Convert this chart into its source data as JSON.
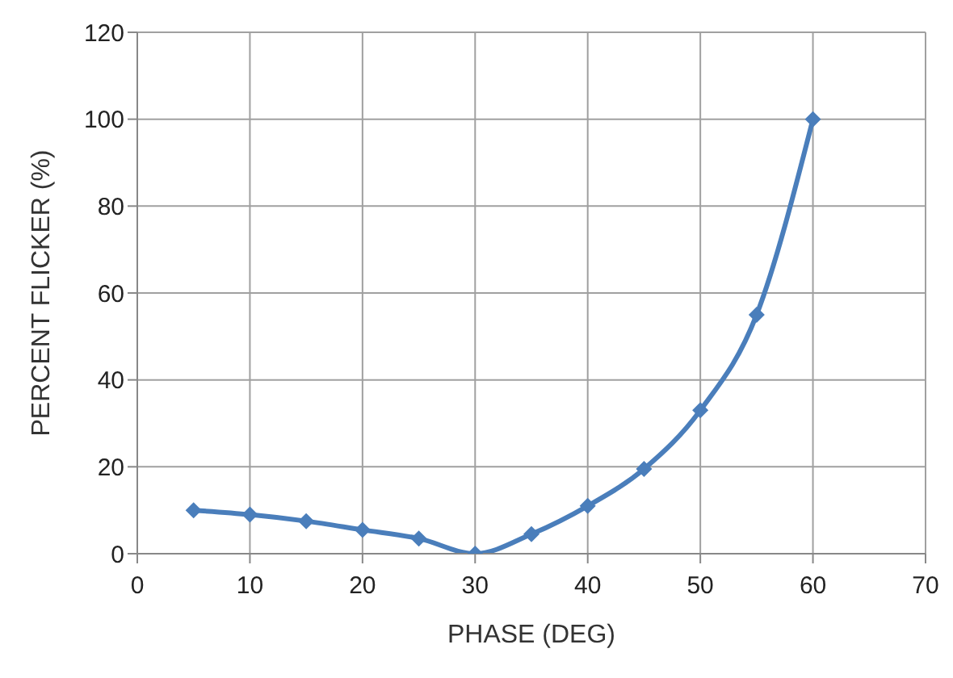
{
  "chart_data": {
    "type": "line",
    "xlabel": "PHASE (DEG)",
    "ylabel": "PERCENT FLICKER (%)",
    "x": [
      5,
      10,
      15,
      20,
      25,
      30,
      35,
      40,
      45,
      50,
      55,
      60
    ],
    "series": [
      {
        "color": "#4a7ebb",
        "values": [
          10,
          9,
          7.5,
          5.5,
          3.5,
          0,
          4.5,
          11,
          19.5,
          33,
          55,
          100
        ]
      }
    ],
    "xlim": [
      0,
      70
    ],
    "xticks": [
      0,
      10,
      20,
      30,
      40,
      50,
      60,
      70
    ],
    "ylim": [
      0,
      120
    ],
    "yticks": [
      0,
      20,
      40,
      60,
      80,
      100,
      120
    ],
    "grid": true,
    "marker": "diamond",
    "line_style": "solid",
    "legend": false
  }
}
